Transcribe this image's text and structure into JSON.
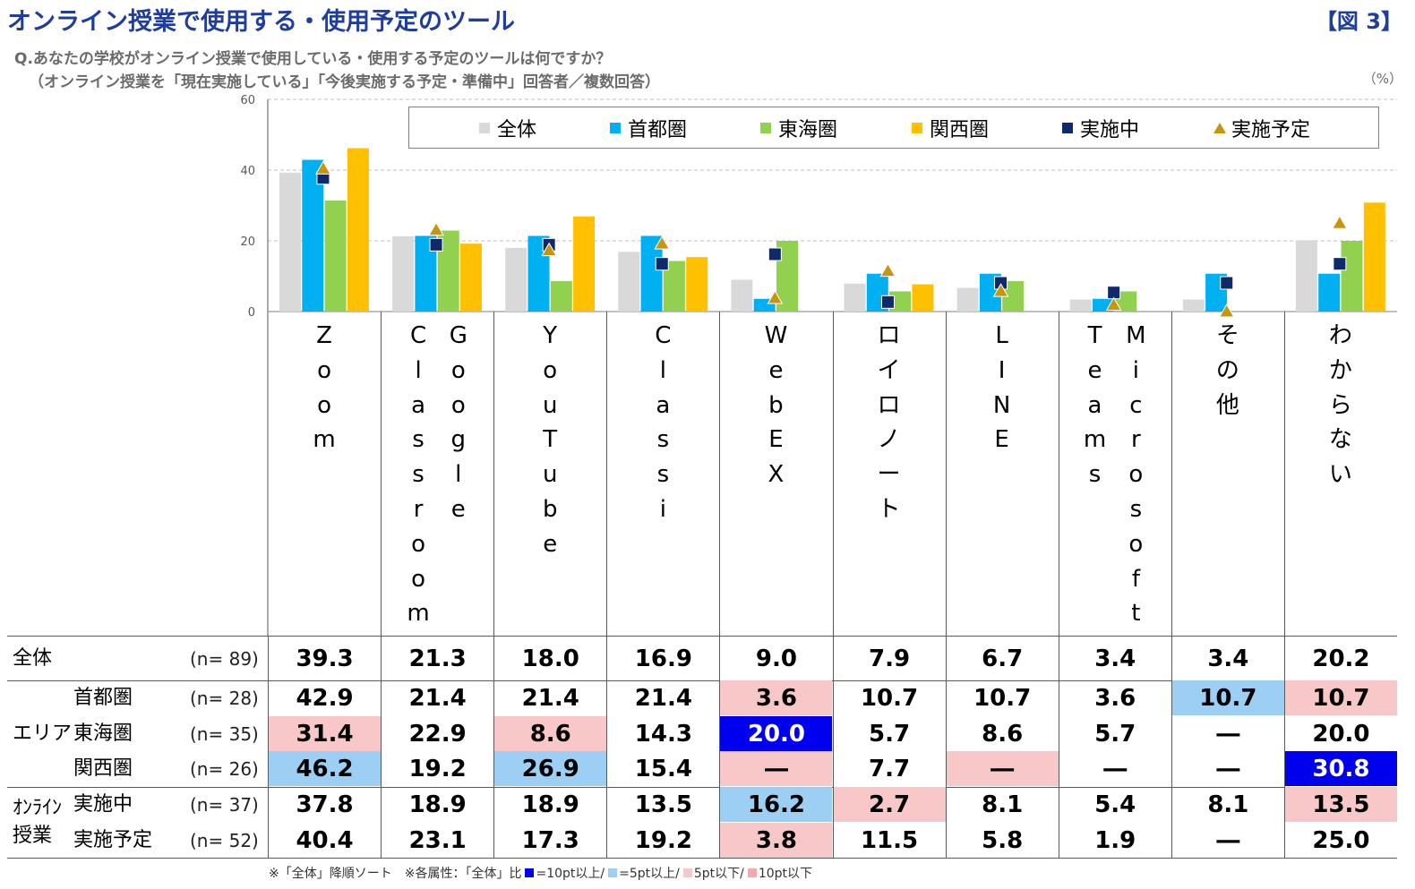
{
  "header": {
    "title": "オンライン授業で使用する・使用予定のツール",
    "figure_no": "【図 3】",
    "question_line1": "Q.あなたの学校がオンライン授業で使用している・使用する予定のツールは何ですか？",
    "question_line2": "（オンライン授業を「現在実施している」「今後実施する予定・準備中」回答者／複数回答）",
    "unit": "（%）"
  },
  "colors": {
    "all": "#d9d9d9",
    "tokyo": "#00b0f0",
    "tokai": "#92d050",
    "kansai": "#ffc000",
    "doing": "#0f2a6b",
    "planned": "#c8960e",
    "hl_plus10": "#0000ee",
    "hl_plus5": "#9dcff5",
    "hl_minus5": "#f8c8c8",
    "hl_minus10": "#f4aaaa"
  },
  "chart_data": {
    "type": "bar",
    "title": "オンライン授業で使用する・使用予定のツール",
    "ylim": [
      0,
      60
    ],
    "yticks": [
      "0",
      "20",
      "40",
      "60"
    ],
    "grid": true,
    "legend_placement": "top",
    "categories": [
      "Zoom",
      "Classroom Google",
      "YouTube",
      "Classi",
      "WebEX",
      "ロイロノート",
      "LINE",
      "Teams Microsoft",
      "その他",
      "わからない"
    ],
    "category_columns": [
      [
        "Zoom"
      ],
      [
        "Classroom",
        "Google"
      ],
      [
        "YouTube"
      ],
      [
        "Classi"
      ],
      [
        "WebEX"
      ],
      [
        "ロイロノート"
      ],
      [
        "LINE"
      ],
      [
        "Teams",
        "Microsoft"
      ],
      [
        "その他"
      ],
      [
        "わからない"
      ]
    ],
    "series": [
      {
        "name": "全体",
        "kind": "bar",
        "color_key": "all",
        "values": [
          39.3,
          21.3,
          18.0,
          16.9,
          9.0,
          7.9,
          6.7,
          3.4,
          3.4,
          20.2
        ]
      },
      {
        "name": "首都圏",
        "kind": "bar",
        "color_key": "tokyo",
        "values": [
          42.9,
          21.4,
          21.4,
          21.4,
          3.6,
          10.7,
          10.7,
          3.6,
          10.7,
          10.7
        ]
      },
      {
        "name": "東海圏",
        "kind": "bar",
        "color_key": "tokai",
        "values": [
          31.4,
          22.9,
          8.6,
          14.3,
          20.0,
          5.7,
          8.6,
          5.7,
          null,
          20.0
        ]
      },
      {
        "name": "関西圏",
        "kind": "bar",
        "color_key": "kansai",
        "values": [
          46.2,
          19.2,
          26.9,
          15.4,
          null,
          7.7,
          null,
          null,
          null,
          30.8
        ]
      },
      {
        "name": "実施中",
        "kind": "square",
        "color_key": "doing",
        "values": [
          37.8,
          18.9,
          18.9,
          13.5,
          16.2,
          2.7,
          8.1,
          5.4,
          8.1,
          13.5
        ]
      },
      {
        "name": "実施予定",
        "kind": "triangle",
        "color_key": "planned",
        "values": [
          40.4,
          23.1,
          17.3,
          19.2,
          3.8,
          11.5,
          5.8,
          1.9,
          0,
          25.0
        ]
      }
    ]
  },
  "table": {
    "rows": [
      {
        "group": "",
        "label": "全体",
        "n": "(n=  89)",
        "values": [
          "39.3",
          "21.3",
          "18.0",
          "16.9",
          "9.0",
          "7.9",
          "6.7",
          "3.4",
          "3.4",
          "20.2"
        ],
        "hl": [
          "",
          "",
          "",
          "",
          "",
          "",
          "",
          "",
          "",
          ""
        ]
      },
      {
        "group": "エリア",
        "label": "首都圏",
        "n": "(n=  28)",
        "values": [
          "42.9",
          "21.4",
          "21.4",
          "21.4",
          "3.6",
          "10.7",
          "10.7",
          "3.6",
          "10.7",
          "10.7"
        ],
        "hl": [
          "",
          "",
          "",
          "",
          "hl_minus5",
          "",
          "",
          "",
          "hl_plus5",
          "hl_minus5"
        ]
      },
      {
        "group": "",
        "label": "東海圏",
        "n": "(n=  35)",
        "values": [
          "31.4",
          "22.9",
          "8.6",
          "14.3",
          "20.0",
          "5.7",
          "8.6",
          "5.7",
          "―",
          "20.0"
        ],
        "hl": [
          "hl_minus5",
          "",
          "hl_minus5",
          "",
          "hl_plus10",
          "",
          "",
          "",
          "",
          ""
        ]
      },
      {
        "group": "",
        "label": "関西圏",
        "n": "(n=  26)",
        "values": [
          "46.2",
          "19.2",
          "26.9",
          "15.4",
          "―",
          "7.7",
          "―",
          "―",
          "―",
          "30.8"
        ],
        "hl": [
          "hl_plus5",
          "",
          "hl_plus5",
          "",
          "hl_minus5",
          "",
          "hl_minus5",
          "",
          "",
          "hl_plus10"
        ]
      },
      {
        "group": "ｵﾝﾗｲﾝ",
        "label": "実施中",
        "n": "(n=  37)",
        "values": [
          "37.8",
          "18.9",
          "18.9",
          "13.5",
          "16.2",
          "2.7",
          "8.1",
          "5.4",
          "8.1",
          "13.5"
        ],
        "hl": [
          "",
          "",
          "",
          "",
          "hl_plus5",
          "hl_minus5",
          "",
          "",
          "",
          "hl_minus5"
        ]
      },
      {
        "group": "授業",
        "label": "実施予定",
        "n": "(n=  52)",
        "values": [
          "40.4",
          "23.1",
          "17.3",
          "19.2",
          "3.8",
          "11.5",
          "5.8",
          "1.9",
          "―",
          "25.0"
        ],
        "hl": [
          "",
          "",
          "",
          "",
          "hl_minus5",
          "",
          "",
          "",
          "",
          ""
        ]
      }
    ]
  },
  "footnote": {
    "sort_note": "※「全体」降順ソート　※各属性：「全体」比",
    "plus10": "=10pt以上/",
    "plus5": "=5pt以上/",
    "minus5": "5pt以下/",
    "minus10": "10pt以下"
  }
}
